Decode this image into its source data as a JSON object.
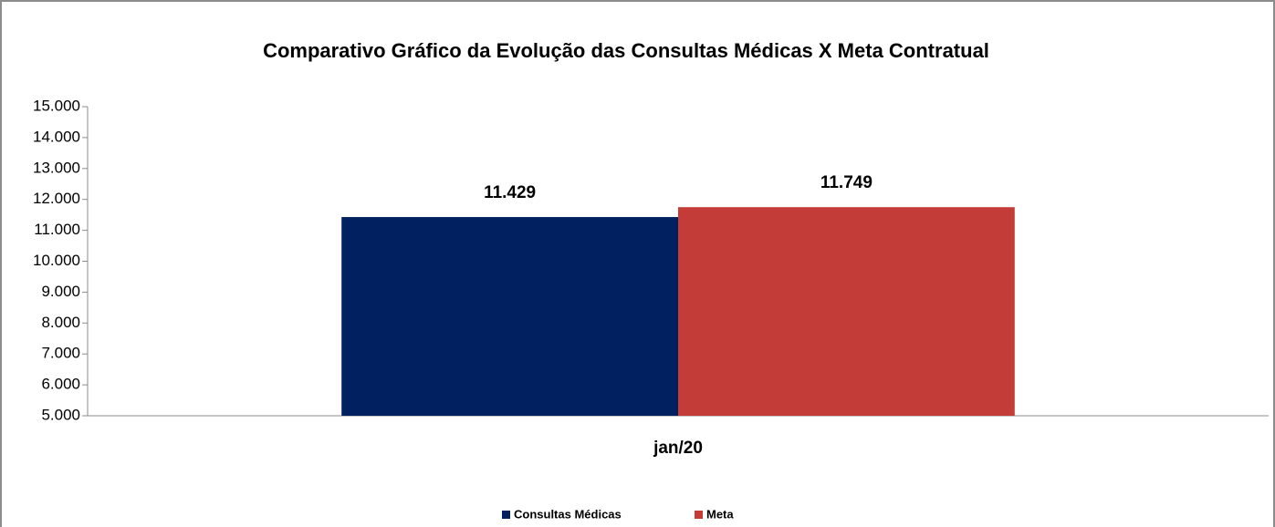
{
  "chart_data": {
    "type": "bar",
    "title": "Comparativo Gráfico da Evolução das Consultas Médicas X Meta Contratual",
    "categories": [
      "jan/20"
    ],
    "series": [
      {
        "name": "Consultas Médicas",
        "color": "#002060",
        "values": [
          11429
        ],
        "value_labels": [
          "11.429"
        ]
      },
      {
        "name": "Meta",
        "color": "#c43c38",
        "values": [
          11749
        ],
        "value_labels": [
          "11.749"
        ]
      }
    ],
    "ylim": [
      5000,
      15000
    ],
    "yticks": [
      {
        "value": 5000,
        "label": "5.000"
      },
      {
        "value": 6000,
        "label": "6.000"
      },
      {
        "value": 7000,
        "label": "7.000"
      },
      {
        "value": 8000,
        "label": "8.000"
      },
      {
        "value": 9000,
        "label": "9.000"
      },
      {
        "value": 10000,
        "label": "10.000"
      },
      {
        "value": 11000,
        "label": "11.000"
      },
      {
        "value": 12000,
        "label": "12.000"
      },
      {
        "value": 13000,
        "label": "13.000"
      },
      {
        "value": 14000,
        "label": "14.000"
      },
      {
        "value": 15000,
        "label": "15.000"
      }
    ],
    "grid": false,
    "legend": "bottom"
  }
}
